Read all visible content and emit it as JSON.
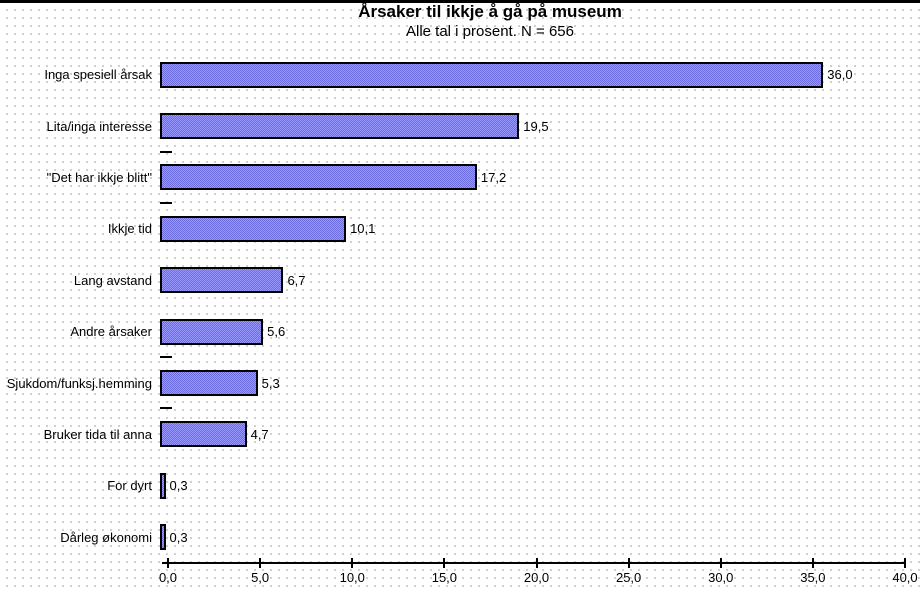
{
  "chart_data": {
    "type": "bar",
    "orientation": "horizontal",
    "title": "Årsaker til ikkje å gå på museum",
    "subtitle": "Alle tal i prosent. N = 656",
    "categories": [
      "Inga spesiell årsak",
      "Lita/inga interesse",
      "\"Det har ikkje blitt\"",
      "Ikkje tid",
      "Lang avstand",
      "Andre årsaker",
      "Sjukdom/funksj.hemming",
      "Bruker tida til anna",
      "For dyrt",
      "Dårleg økonomi"
    ],
    "values": [
      36.0,
      19.5,
      17.2,
      10.1,
      6.7,
      5.6,
      5.3,
      4.7,
      0.3,
      0.3
    ],
    "value_labels": [
      "36,0",
      "19,5",
      "17,2",
      "10,1",
      "6,7",
      "5,6",
      "5,3",
      "4,7",
      "0,3",
      "0,3"
    ],
    "x_ticks": [
      "0,0",
      "5,0",
      "10,0",
      "15,0",
      "20,0",
      "25,0",
      "30,0",
      "35,0",
      "40,0"
    ],
    "xlim": [
      0,
      40
    ],
    "xlabel": "",
    "ylabel": "",
    "legend": false,
    "grid": false,
    "colors": {
      "bar_light": "#9999FF",
      "bar_dark": "#6B6BDD",
      "bar_border": "#000000",
      "background_dots": "#C3C3C3"
    }
  }
}
